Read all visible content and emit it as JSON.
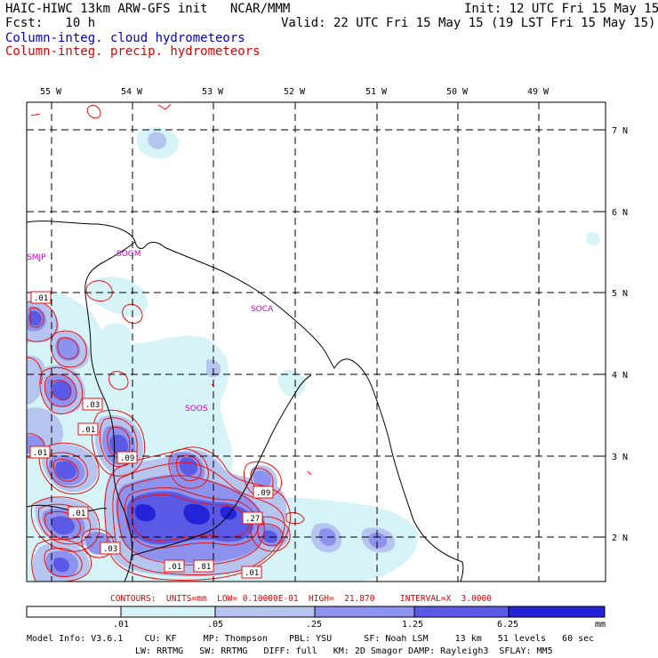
{
  "header": {
    "title_left": "HAIC-HIWC 13km ARW-GFS init   NCAR/MMM",
    "init": "Init: 12 UTC Fri 15 May 15",
    "fcst": "Fcst:   10 h",
    "valid": "Valid: 22 UTC Fri 15 May 15 (19 LST Fri 15 May 15)",
    "legend_cloud": "Column-integ. cloud hydrometeors",
    "legend_precip": "Column-integ. precip. hydrometeors"
  },
  "colors": {
    "cloud_legend": "#0000cc",
    "precip_legend": "#dd0000",
    "station_label": "#cc00cc",
    "shade_1": "#d6f4f8",
    "shade_2": "#b6c4f0",
    "shade_3": "#8c92ee",
    "shade_4": "#5a5ae6",
    "shade_5": "#2323d8",
    "contour": "#ee1111"
  },
  "axes": {
    "lon_labels": [
      "55 W",
      "54 W",
      "53 W",
      "52 W",
      "51 W",
      "50 W",
      "49 W"
    ],
    "lat_labels": [
      "7 N",
      "6 N",
      "5 N",
      "4 N",
      "3 N",
      "2 N"
    ]
  },
  "stations": [
    "SMJP",
    "SOGM",
    "SOCA",
    "SOOS"
  ],
  "contour_labels": [
    ".01",
    ".03",
    ".01",
    ".01",
    ".09",
    ".09",
    ".27",
    ".01",
    ".03",
    ".01",
    ".81",
    ".01"
  ],
  "contour_info": "CONTOURS:  UNITS=mm  LOW= 0.10000E-01  HIGH=  21.870     INTERVAL=X  3.0000",
  "colorbar": {
    "ticks": [
      ".01",
      ".05",
      ".25",
      "1.25",
      "6.25"
    ],
    "units": "mm"
  },
  "model_info": {
    "line1": "Model Info: V3.6.1    CU: KF     MP: Thompson    PBL: YSU      SF: Noah LSM     13 km   51 levels   60 sec",
    "line2": "LW: RRTMG   SW: RRTMG   DIFF: full   KM: 2D Smagor DAMP: Rayleigh3  SFLAY: MM5"
  }
}
